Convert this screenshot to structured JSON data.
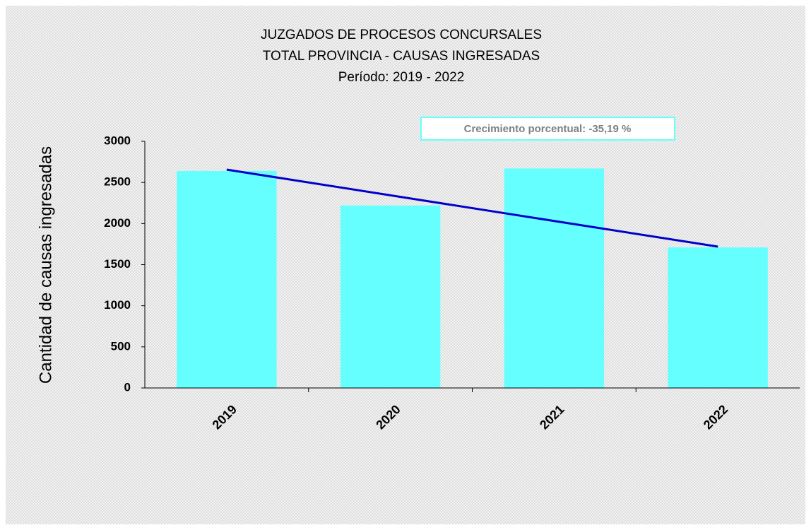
{
  "chart_data": {
    "type": "bar",
    "title": [
      "JUZGADOS DE PROCESOS CONCURSALES",
      "TOTAL PROVINCIA - CAUSAS INGRESADAS",
      "Período: 2019 - 2022"
    ],
    "annotation": "Crecimiento porcentual: -35,19 %",
    "y_label": "Cantidad de causas ingresadas",
    "categories": [
      "2019",
      "2020",
      "2021",
      "2022"
    ],
    "values": [
      2640,
      2220,
      2670,
      1710
    ],
    "color": "#66ffff",
    "trend": {
      "color": "#0000cc",
      "values": [
        2656,
        1719
      ]
    },
    "ylim": [
      0,
      3000
    ],
    "yticks": [
      0,
      500,
      1000,
      1500,
      2000,
      2500,
      3000
    ]
  }
}
